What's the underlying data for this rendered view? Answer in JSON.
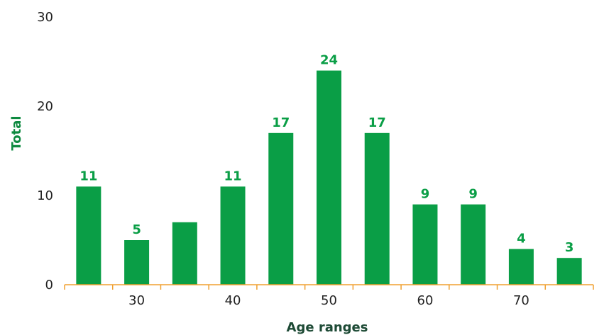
{
  "chart_data": {
    "type": "bar",
    "x": [
      25,
      30,
      35,
      40,
      45,
      50,
      55,
      60,
      65,
      70,
      75
    ],
    "values": [
      11,
      5,
      7,
      11,
      17,
      24,
      17,
      9,
      9,
      4,
      3
    ],
    "data_labels": [
      "11",
      "5",
      "",
      "11",
      "17",
      "24",
      "17",
      "9",
      "9",
      "4",
      "3"
    ],
    "xticks": [
      30,
      40,
      50,
      60,
      70
    ],
    "xtick_labels": [
      "30",
      "40",
      "50",
      "60",
      "70"
    ],
    "yticks": [
      0,
      10,
      20,
      30
    ],
    "ytick_labels": [
      "0",
      "10",
      "20",
      "30"
    ],
    "xlabel": "Age ranges",
    "ylabel": "Total",
    "xlim": [
      22.5,
      77.5
    ],
    "ylim": [
      0,
      30
    ],
    "grid": false,
    "legend": "none",
    "colors": {
      "bar": "#0a9e46",
      "data_label": "#0a9e46",
      "axis": "#f0a030",
      "axis_title_x": "#1d4a35",
      "axis_title_y": "#0e8a40",
      "tick_text": "#222222"
    }
  }
}
